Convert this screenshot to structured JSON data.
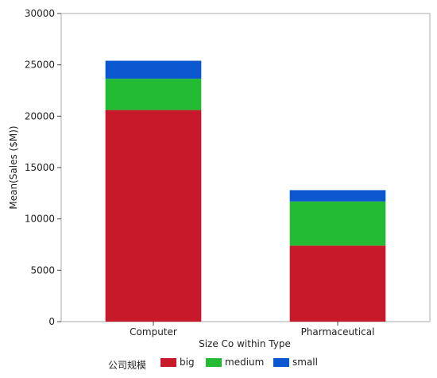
{
  "chart_data": {
    "type": "bar",
    "stacked": true,
    "categories": [
      "Computer",
      "Pharmaceutical"
    ],
    "series": [
      {
        "name": "big",
        "color": "#c8192b",
        "values": [
          20600,
          7400
        ]
      },
      {
        "name": "medium",
        "color": "#22bb33",
        "values": [
          3050,
          4300
        ]
      },
      {
        "name": "small",
        "color": "#0b57d0",
        "values": [
          1750,
          1100
        ]
      }
    ],
    "xlabel": "Size Co within Type",
    "ylabel": "Mean(Sales ($M))",
    "ylim": [
      0,
      30000
    ],
    "yticks": [
      0,
      5000,
      10000,
      15000,
      20000,
      25000,
      30000
    ],
    "grid": false,
    "legend_title": "公司规模",
    "legend_position": "bottom-left"
  }
}
